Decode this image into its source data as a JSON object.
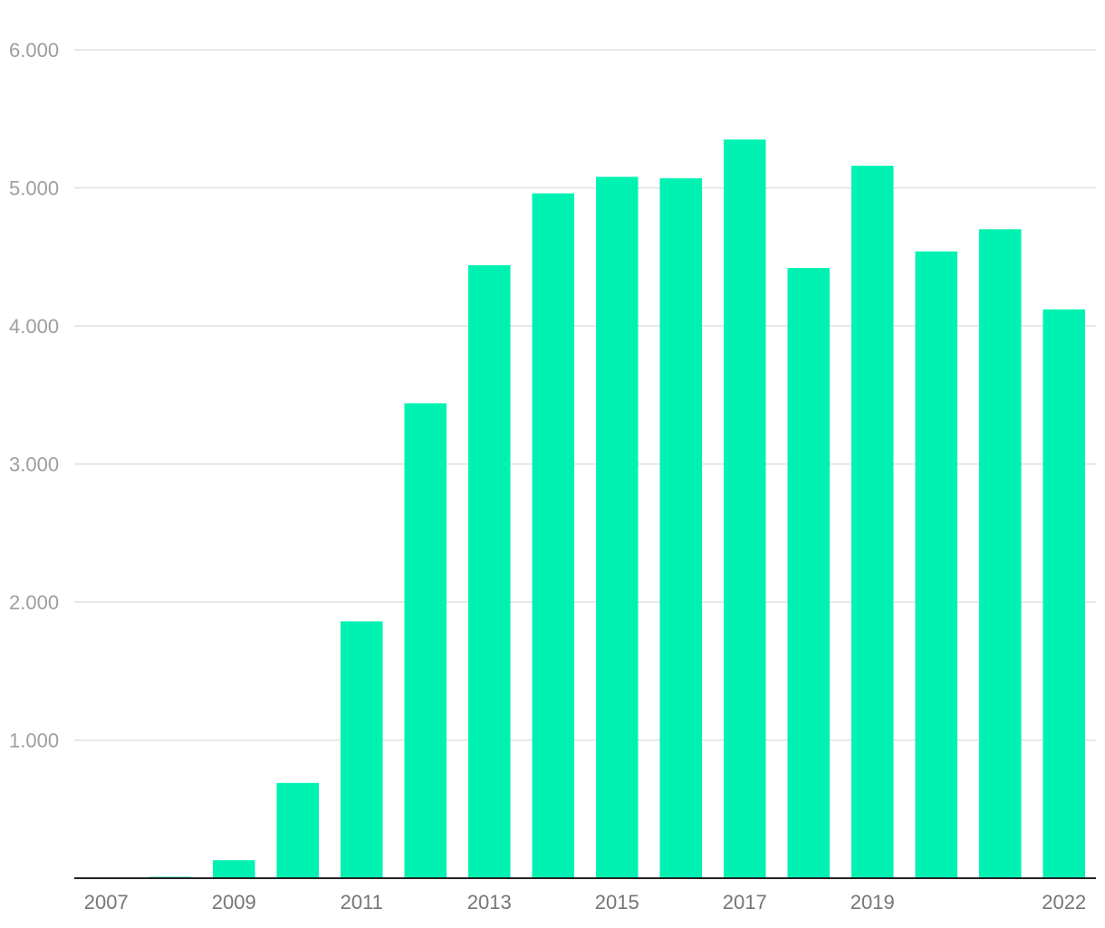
{
  "chart_data": {
    "type": "bar",
    "categories": [
      "2007",
      "2008",
      "2009",
      "2010",
      "2011",
      "2012",
      "2013",
      "2014",
      "2015",
      "2016",
      "2017",
      "2018",
      "2019",
      "2020",
      "2021",
      "2022"
    ],
    "values": [
      0,
      10,
      130,
      690,
      1860,
      3440,
      4440,
      4960,
      5080,
      5070,
      5350,
      4420,
      5160,
      4540,
      4700,
      4120
    ],
    "x_tick_labels": [
      "2007",
      "",
      "2009",
      "",
      "2011",
      "",
      "2013",
      "",
      "2015",
      "",
      "2017",
      "",
      "2019",
      "",
      "",
      "2022"
    ],
    "y_ticks": [
      1000,
      2000,
      3000,
      4000,
      5000,
      6000
    ],
    "y_tick_labels": [
      "1.000",
      "2.000",
      "3.000",
      "4.000",
      "5.000",
      "6.000"
    ],
    "ylim": [
      0,
      6000
    ],
    "grid": true,
    "bar_color": "#00f2b2",
    "title": "",
    "xlabel": "",
    "ylabel": ""
  }
}
